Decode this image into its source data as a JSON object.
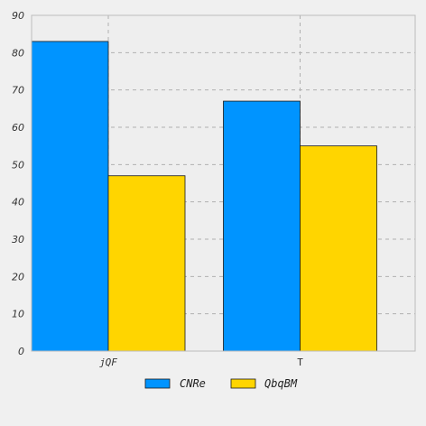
{
  "chart_data": {
    "type": "bar",
    "categories": [
      "jQF",
      "T"
    ],
    "series": [
      {
        "name": "CNRe",
        "values": [
          83,
          67
        ],
        "color": "#0094ff"
      },
      {
        "name": "QbqBM",
        "values": [
          47,
          55
        ],
        "color": "#ffd500"
      }
    ],
    "title": "",
    "xlabel": "",
    "ylabel": "",
    "ylim": [
      0,
      90
    ],
    "yticks": [
      0,
      10,
      20,
      30,
      40,
      50,
      60,
      70,
      80,
      90
    ],
    "grid": true,
    "legend_position": "bottom-center"
  },
  "colors": {
    "background": "#f0f0f0",
    "plot_background": "#eeeeee",
    "grid": "#b0b0b0",
    "axes": "#bcbcbc"
  }
}
